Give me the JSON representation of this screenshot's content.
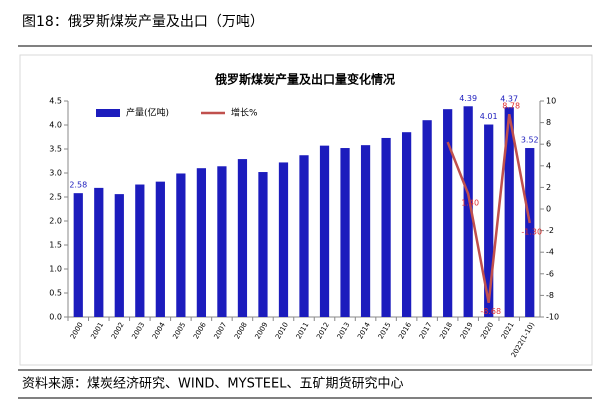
{
  "header": {
    "title": "图18：俄罗斯煤炭产量及出口（万吨）"
  },
  "chart_data": {
    "type": "bar",
    "title": "俄罗斯煤炭产量及出口量变化情况",
    "categories": [
      "2000",
      "2001",
      "2002",
      "2003",
      "2004",
      "2005",
      "2006",
      "2007",
      "2008",
      "2009",
      "2010",
      "2011",
      "2012",
      "2013",
      "2014",
      "2015",
      "2016",
      "2017",
      "2018",
      "2019",
      "2020",
      "2021",
      "2022(1-10)"
    ],
    "series": [
      {
        "name": "产量(亿吨)",
        "type": "bar",
        "color": "#1c1cbd",
        "values": [
          2.58,
          2.69,
          2.56,
          2.76,
          2.82,
          2.99,
          3.1,
          3.14,
          3.29,
          3.02,
          3.22,
          3.37,
          3.57,
          3.52,
          3.58,
          3.73,
          3.85,
          4.1,
          4.33,
          4.39,
          4.01,
          4.37,
          3.52
        ],
        "value_labels": [
          "2.58",
          null,
          null,
          null,
          null,
          null,
          null,
          null,
          null,
          null,
          null,
          null,
          null,
          null,
          null,
          null,
          null,
          null,
          null,
          "4.39",
          "4.01",
          "4.37",
          "3.52"
        ]
      },
      {
        "name": "增长%",
        "type": "line",
        "axis": "y2",
        "color": "#c0504d",
        "values": [
          null,
          null,
          null,
          null,
          null,
          null,
          null,
          null,
          null,
          null,
          null,
          null,
          null,
          null,
          null,
          null,
          null,
          null,
          6.2,
          1.4,
          -8.68,
          8.78,
          -1.3
        ],
        "value_labels": [
          null,
          null,
          null,
          null,
          null,
          null,
          null,
          null,
          null,
          null,
          null,
          null,
          null,
          null,
          null,
          null,
          null,
          null,
          null,
          "1.40",
          "-8.68",
          "8.78",
          "-1.30"
        ]
      }
    ],
    "ylim": [
      0,
      4.5
    ],
    "yticks": [
      {
        "value": 0,
        "label": "0.0"
      },
      {
        "value": 0.5,
        "label": "0.5"
      },
      {
        "value": 1,
        "label": "1.0"
      },
      {
        "value": 1.5,
        "label": "1.5"
      },
      {
        "value": 2,
        "label": "2.0"
      },
      {
        "value": 2.5,
        "label": "2.5"
      },
      {
        "value": 3,
        "label": "3.0"
      },
      {
        "value": 3.5,
        "label": "3.5"
      },
      {
        "value": 4,
        "label": "4.0"
      },
      {
        "value": 4.5,
        "label": "4.5"
      }
    ],
    "y2lim": [
      -10,
      10
    ],
    "y2ticks": [
      -10,
      -8,
      -6,
      -4,
      -2,
      0,
      2,
      4,
      6,
      8,
      10
    ],
    "legend": "top-left"
  },
  "source": "资料来源：煤炭经济研究、WIND、MYSTEEL、五矿期货研究中心"
}
